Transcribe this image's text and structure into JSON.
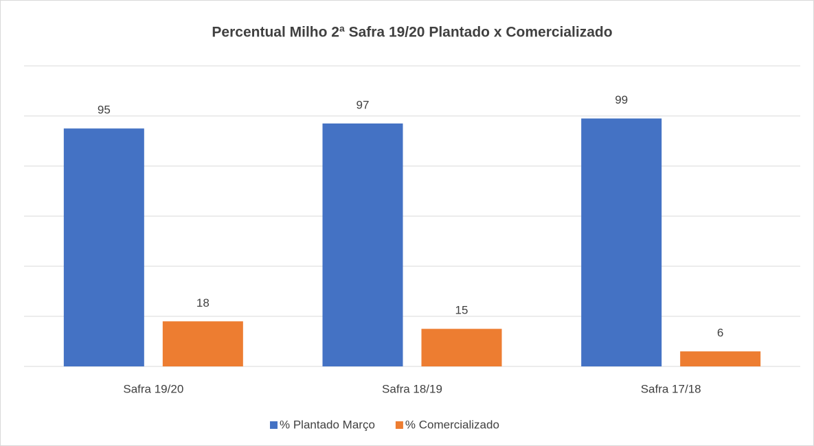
{
  "chart_data": {
    "type": "bar",
    "title": "Percentual Milho 2ª Safra 19/20 Plantado x Comercializado",
    "categories": [
      "Safra 19/20",
      "Safra 18/19",
      "Safra 17/18"
    ],
    "series": [
      {
        "name": "% Plantado Março",
        "color": "#4472c4",
        "values": [
          95,
          97,
          99
        ]
      },
      {
        "name": "% Comercializado",
        "color": "#ed7d31",
        "values": [
          18,
          15,
          6
        ]
      }
    ],
    "ylim": [
      0,
      120
    ],
    "yticks": [
      0,
      20,
      40,
      60,
      80,
      100,
      120
    ],
    "grid": true,
    "legend": "bottom"
  }
}
